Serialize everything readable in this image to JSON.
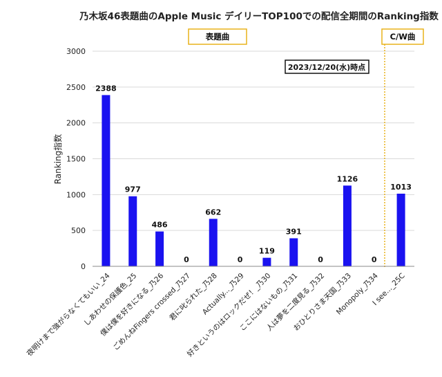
{
  "chart_data": {
    "type": "bar",
    "title": "乃木坂46表題曲のApple Music デイリーTOP100での配信全期間のRanking指数",
    "ylabel": "Ranking指数",
    "xlabel": "",
    "ylim": [
      0,
      3000
    ],
    "yticks": [
      0,
      500,
      1000,
      1500,
      2000,
      2500,
      3000
    ],
    "grid": true,
    "legend": "none",
    "bar_color": "#1a12f0",
    "categories": [
      "夜明けまで強がらなくてもいい_24",
      "しあわせの保護色_25",
      "僕は僕を好きになる_乃26",
      "ごめんねFingers crossed_乃27",
      "君に叱られた_乃28",
      "Actually..._乃29",
      "好きというのはロックだぜ！_乃30",
      "ここにはないもの_乃31",
      "人は夢を二度見る_乃32",
      "おひとりさま天国_乃33",
      "Monopoly_乃34",
      "I see..._25C"
    ],
    "values": [
      2388,
      977,
      486,
      0,
      662,
      0,
      119,
      391,
      0,
      1126,
      0,
      1013
    ],
    "value_labels": [
      "2388",
      "977",
      "486",
      "0",
      "662",
      "0",
      "119",
      "391",
      "0",
      "1126",
      "0",
      "1013"
    ],
    "annotations": {
      "group_a_label": "表題曲",
      "group_b_label": "C/W曲",
      "date_label": "2023/12/20(水)時点",
      "box_border_color": "#e8b21a",
      "divider_color": "#e8b21a"
    }
  }
}
